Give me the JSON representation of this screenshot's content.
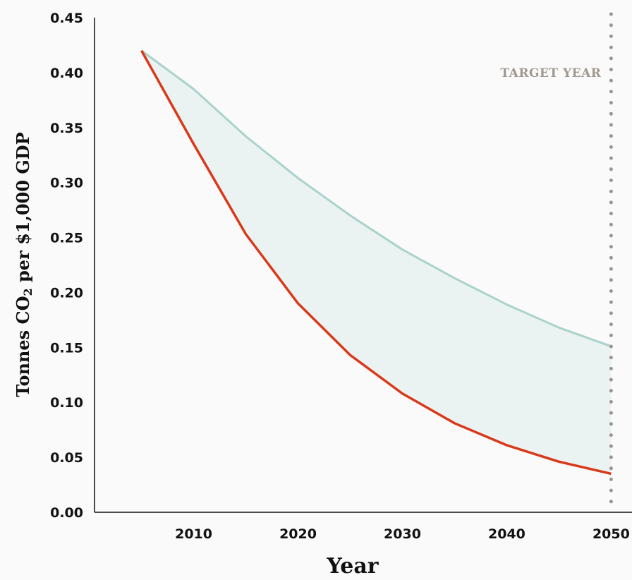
{
  "chart_data": {
    "type": "area",
    "title": "",
    "xlabel": "Year",
    "ylabel": {
      "main": "Tonnes CO",
      "sub": "2",
      "rest": " per $1,000 GDP"
    },
    "x": [
      2005,
      2010,
      2015,
      2020,
      2025,
      2030,
      2035,
      2040,
      2045,
      2050
    ],
    "series": [
      {
        "values": [
          0.42,
          0.385,
          0.342,
          0.304,
          0.27,
          0.239,
          0.213,
          0.189,
          0.168,
          0.151
        ],
        "color": "#a9d3cb"
      },
      {
        "values": [
          0.42,
          0.335,
          0.253,
          0.19,
          0.143,
          0.108,
          0.081,
          0.061,
          0.046,
          0.035
        ],
        "color": "#d8391a"
      }
    ],
    "band_fill": "#ebf3f2",
    "xlim": [
      2000.5,
      2052
    ],
    "ylim": [
      0,
      0.45
    ],
    "xticks": [
      "2010",
      "2020",
      "2030",
      "2040",
      "2050"
    ],
    "yticks": [
      "0.00",
      "0.05",
      "0.10",
      "0.15",
      "0.20",
      "0.25",
      "0.30",
      "0.35",
      "0.40",
      "0.45"
    ],
    "target": {
      "year": 2050,
      "label": "TARGET YEAR",
      "color": "#9c948d"
    },
    "grid": false
  }
}
